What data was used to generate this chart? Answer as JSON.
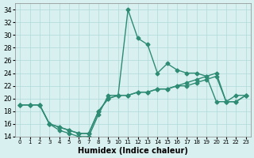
{
  "xlabel": "Humidex (Indice chaleur)",
  "ylabel": "",
  "x_hours": [
    0,
    1,
    2,
    3,
    4,
    5,
    6,
    7,
    8,
    9,
    10,
    11,
    12,
    13,
    14,
    15,
    16,
    17,
    18,
    19,
    20,
    21,
    22,
    23
  ],
  "line1_y": [
    19,
    19,
    19,
    16,
    15,
    14.5,
    14,
    14,
    17.5,
    20.5,
    20.5,
    34,
    29.5,
    28.5,
    24,
    25.5,
    24.5,
    24,
    24,
    23.5,
    19.5,
    19.5,
    20.5,
    20.5
  ],
  "line2_y": [
    19,
    19,
    19,
    16,
    15.5,
    15,
    14.5,
    14.5,
    18,
    20,
    20.5,
    20.5,
    21,
    21,
    21.5,
    21.5,
    22,
    22,
    22.5,
    23,
    23.5,
    19.5,
    19.5,
    20.5
  ],
  "line3_y": [
    19,
    19,
    19,
    16,
    15.5,
    15,
    14.5,
    14.5,
    18,
    20,
    20.5,
    20.5,
    21,
    21,
    21.5,
    21.5,
    22,
    22.5,
    23,
    23.5,
    24,
    19.5,
    19.5,
    20.5
  ],
  "line_color": "#2e8b74",
  "bg_color": "#d8f0f0",
  "grid_color": "#b0d8d8",
  "ylim": [
    14,
    35
  ],
  "yticks": [
    14,
    16,
    18,
    20,
    22,
    24,
    26,
    28,
    30,
    32,
    34
  ],
  "line_width": 1.0,
  "marker": "D",
  "marker_size": 2.5
}
